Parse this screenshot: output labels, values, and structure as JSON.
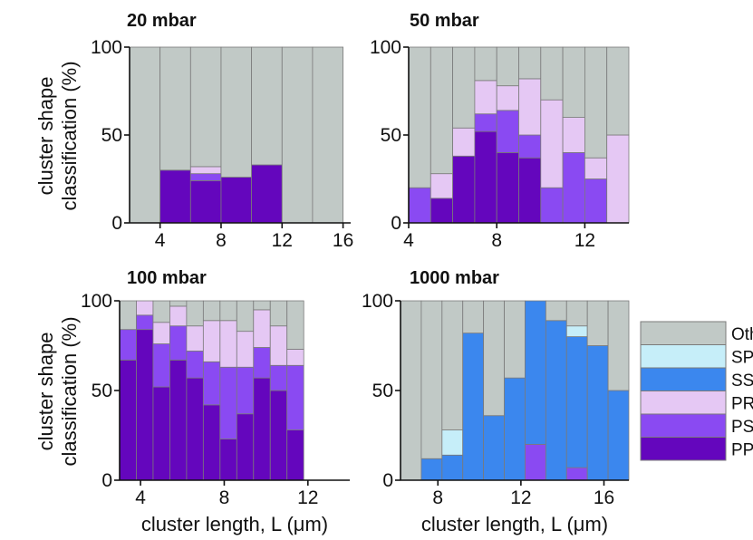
{
  "colors": {
    "Other": "#c1c9c6",
    "SP": "#c6eef9",
    "SS": "#3b87ee",
    "PR": "#e5c8f4",
    "PS": "#8a4af2",
    "PP": "#6406bd"
  },
  "legend": {
    "entries": [
      "Other",
      "SP",
      "SS",
      "PR",
      "PS",
      "PP"
    ]
  },
  "chart_data": [
    {
      "type": "bar",
      "stacked": true,
      "title": "20 mbar",
      "xlabel": "",
      "ylabel": "cluster shape classification (%)",
      "ylabel_lines": [
        "cluster shape",
        "classification (%)"
      ],
      "xlim": [
        2,
        16.5
      ],
      "ylim": [
        0,
        100
      ],
      "xticks": [
        4,
        8,
        12,
        16
      ],
      "yticks": [
        0,
        50,
        100
      ],
      "bin_width": 2,
      "x": [
        3,
        5,
        7,
        9,
        11,
        13,
        15
      ],
      "series": [
        {
          "name": "PP",
          "values": [
            0,
            30,
            24,
            26,
            33,
            0,
            0
          ]
        },
        {
          "name": "PS",
          "values": [
            0,
            0,
            4,
            0,
            0,
            0,
            0
          ]
        },
        {
          "name": "PR",
          "values": [
            0,
            0,
            4,
            0,
            0,
            0,
            0
          ]
        },
        {
          "name": "Other",
          "values": [
            100,
            70,
            68,
            74,
            67,
            100,
            100
          ]
        }
      ]
    },
    {
      "type": "bar",
      "stacked": true,
      "title": "50 mbar",
      "xlabel": "",
      "ylabel": "",
      "ylabel_lines": [],
      "xlim": [
        4,
        14
      ],
      "ylim": [
        0,
        100
      ],
      "xticks": [
        4,
        8,
        12
      ],
      "yticks": [
        0,
        50,
        100
      ],
      "bin_width": 1,
      "x": [
        4.5,
        5.5,
        6.5,
        7.5,
        8.5,
        9.5,
        10.5,
        11.5,
        12.5,
        13.5
      ],
      "series": [
        {
          "name": "PP",
          "values": [
            0,
            14,
            38,
            52,
            40,
            37,
            0,
            0,
            0,
            0
          ]
        },
        {
          "name": "PS",
          "values": [
            20,
            0,
            0,
            10,
            24,
            13,
            20,
            40,
            25,
            0
          ]
        },
        {
          "name": "PR",
          "values": [
            0,
            14,
            16,
            19,
            14,
            32,
            50,
            20,
            12,
            50
          ]
        },
        {
          "name": "Other",
          "values": [
            80,
            72,
            46,
            19,
            22,
            18,
            30,
            40,
            63,
            50
          ]
        }
      ]
    },
    {
      "type": "bar",
      "stacked": true,
      "title": "100 mbar",
      "xlabel": "cluster length, L (μm)",
      "ylabel": "cluster shape classification (%)",
      "ylabel_lines": [
        "cluster shape",
        "classification (%)"
      ],
      "xlim": [
        3,
        14
      ],
      "ylim": [
        0,
        100
      ],
      "xticks": [
        4,
        8,
        12
      ],
      "yticks": [
        0,
        50,
        100
      ],
      "bin_width": 0.8,
      "x": [
        3.4,
        4.2,
        5.0,
        5.8,
        6.6,
        7.4,
        8.2,
        9.0,
        9.8,
        10.6,
        11.4,
        12.2,
        13.0,
        13.8
      ],
      "series": [
        {
          "name": "PP",
          "values": [
            67,
            84,
            52,
            67,
            57,
            42,
            23,
            37,
            57,
            50,
            28,
            0,
            0,
            0
          ]
        },
        {
          "name": "PS",
          "values": [
            17,
            8,
            24,
            19,
            15,
            24,
            40,
            26,
            17,
            14,
            36,
            0,
            0,
            0
          ]
        },
        {
          "name": "PR",
          "values": [
            0,
            8,
            12,
            11,
            14,
            23,
            26,
            20,
            21,
            22,
            9,
            0,
            0,
            0
          ]
        },
        {
          "name": "Other",
          "values": [
            16,
            0,
            12,
            3,
            14,
            11,
            11,
            17,
            5,
            14,
            27,
            0,
            0,
            0
          ]
        }
      ]
    },
    {
      "type": "bar",
      "stacked": true,
      "title": "1000 mbar",
      "xlabel": "cluster length, L (μm)",
      "ylabel": "",
      "ylabel_lines": [],
      "xlim": [
        6.2,
        17.2
      ],
      "ylim": [
        0,
        100
      ],
      "xticks": [
        8,
        12,
        16
      ],
      "yticks": [
        0,
        50,
        100
      ],
      "bin_width": 1,
      "x": [
        6.7,
        7.7,
        8.7,
        9.7,
        10.7,
        11.7,
        12.7,
        13.7,
        14.7,
        15.7,
        16.7
      ],
      "series": [
        {
          "name": "PS",
          "values": [
            0,
            0,
            0,
            0,
            0,
            0,
            20,
            0,
            7,
            0,
            0
          ]
        },
        {
          "name": "SS",
          "values": [
            0,
            12,
            14,
            82,
            36,
            57,
            80,
            89,
            73,
            75,
            50
          ]
        },
        {
          "name": "SP",
          "values": [
            0,
            0,
            14,
            0,
            0,
            0,
            0,
            0,
            6,
            0,
            0
          ]
        },
        {
          "name": "Other",
          "values": [
            100,
            88,
            72,
            18,
            64,
            43,
            0,
            11,
            14,
            25,
            50
          ]
        }
      ]
    }
  ]
}
